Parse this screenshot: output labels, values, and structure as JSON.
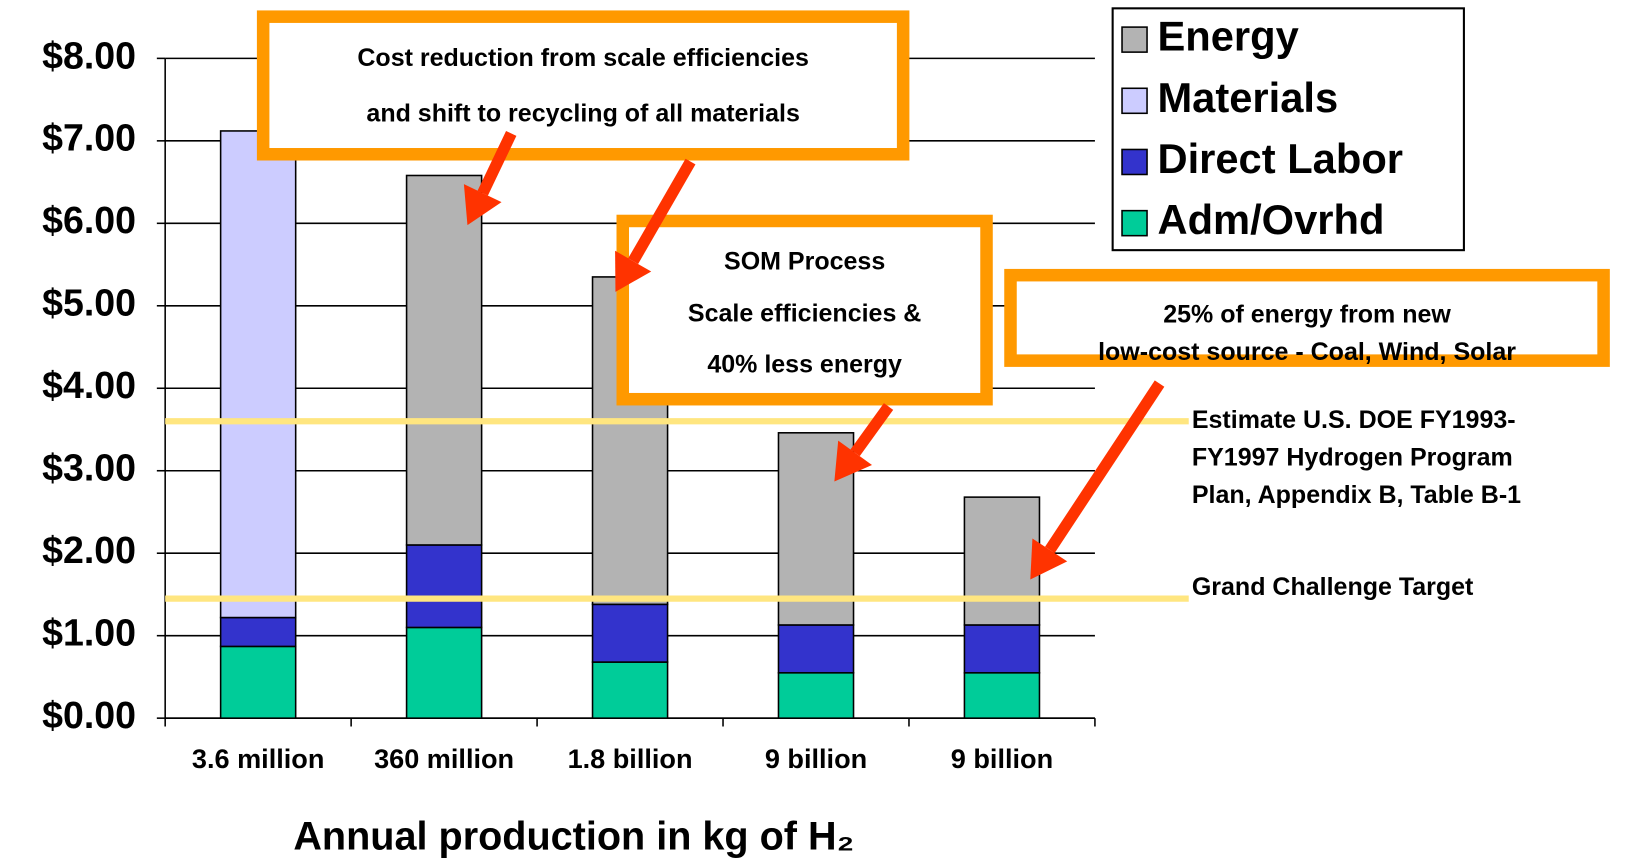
{
  "chart_data": {
    "type": "stacked_bar",
    "x_label": "Annual production in kg of H₂",
    "categories": [
      "3.6 million",
      "360 million",
      "1.8 billion",
      "9 billion",
      "9 billion"
    ],
    "series": [
      {
        "name": "Adm/Ovrhd",
        "color": "#00cc99",
        "values": [
          0.87,
          1.1,
          0.68,
          0.55,
          0.55
        ]
      },
      {
        "name": "Direct Labor",
        "color": "#3333cc",
        "values": [
          0.35,
          1.0,
          0.7,
          0.58,
          0.58
        ]
      },
      {
        "name": "Materials",
        "color": "#ccccff",
        "values": [
          5.9,
          0,
          0,
          0,
          0
        ]
      },
      {
        "name": "Energy",
        "color": "#b3b3b3",
        "values": [
          0,
          4.48,
          3.97,
          2.33,
          1.55
        ]
      }
    ],
    "ylim": [
      0,
      8
    ],
    "yticks": [
      {
        "value": 0,
        "label": "$0.00"
      },
      {
        "value": 1,
        "label": "$1.00"
      },
      {
        "value": 2,
        "label": "$2.00"
      },
      {
        "value": 3,
        "label": "$3.00"
      },
      {
        "value": 4,
        "label": "$4.00"
      },
      {
        "value": 5,
        "label": "$5.00"
      },
      {
        "value": 6,
        "label": "$6.00"
      },
      {
        "value": 7,
        "label": "$7.00"
      },
      {
        "value": 8,
        "label": "$8.00"
      }
    ],
    "grid": true,
    "legend": "top-right",
    "reference_lines": [
      {
        "value": 3.6,
        "color": "#ffe680",
        "label": [
          "Estimate U.S. DOE FY1993-",
          "FY1997 Hydrogen Program",
          "Plan, Appendix B, Table B-1"
        ]
      },
      {
        "value": 1.45,
        "color": "#ffe680",
        "label": [
          "Grand Challenge Target"
        ]
      }
    ],
    "annotations": [
      {
        "text": [
          "Cost reduction from scale efficiencies",
          "and shift to recycling of all materials"
        ]
      },
      {
        "text": [
          "SOM Process",
          "Scale efficiencies &",
          "40% less energy"
        ]
      },
      {
        "text": [
          "25% of energy from new",
          "low-cost source - Coal, Wind, Solar"
        ]
      }
    ]
  }
}
